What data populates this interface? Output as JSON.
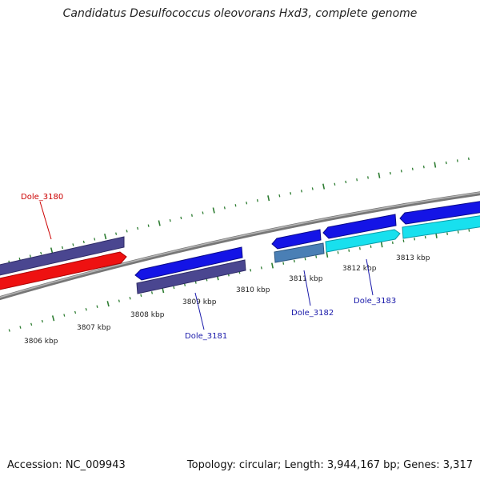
{
  "title": "Candidatus Desulfococcus oleovorans Hxd3, complete genome",
  "footer": {
    "accession": "Accession: NC_009943",
    "summary": "Topology: circular; Length: 3,944,167 bp; Genes: 3,317"
  },
  "colors": {
    "background": "#ffffff",
    "backbone": "#8a8a8a",
    "tick_marks": "#2e7d32",
    "label_red": "#cc0000",
    "label_blue": "#1a1aaa",
    "gene_purple": "#4a4690",
    "gene_red": "#ee1111",
    "gene_blue": "#1414e6",
    "gene_steel": "#4a7fb5",
    "gene_cyan": "#18e0ee"
  },
  "scale_labels": [
    "3806 kbp",
    "3807 kbp",
    "3808 kbp",
    "3809 kbp",
    "3810 kbp",
    "3811 kbp",
    "3812 kbp",
    "3813 kbp"
  ],
  "gene_labels": [
    {
      "text": "Dole_3180",
      "color": "red"
    },
    {
      "text": "Dole_3181",
      "color": "blue"
    },
    {
      "text": "Dole_3182",
      "color": "blue"
    },
    {
      "text": "Dole_3183",
      "color": "blue"
    }
  ]
}
